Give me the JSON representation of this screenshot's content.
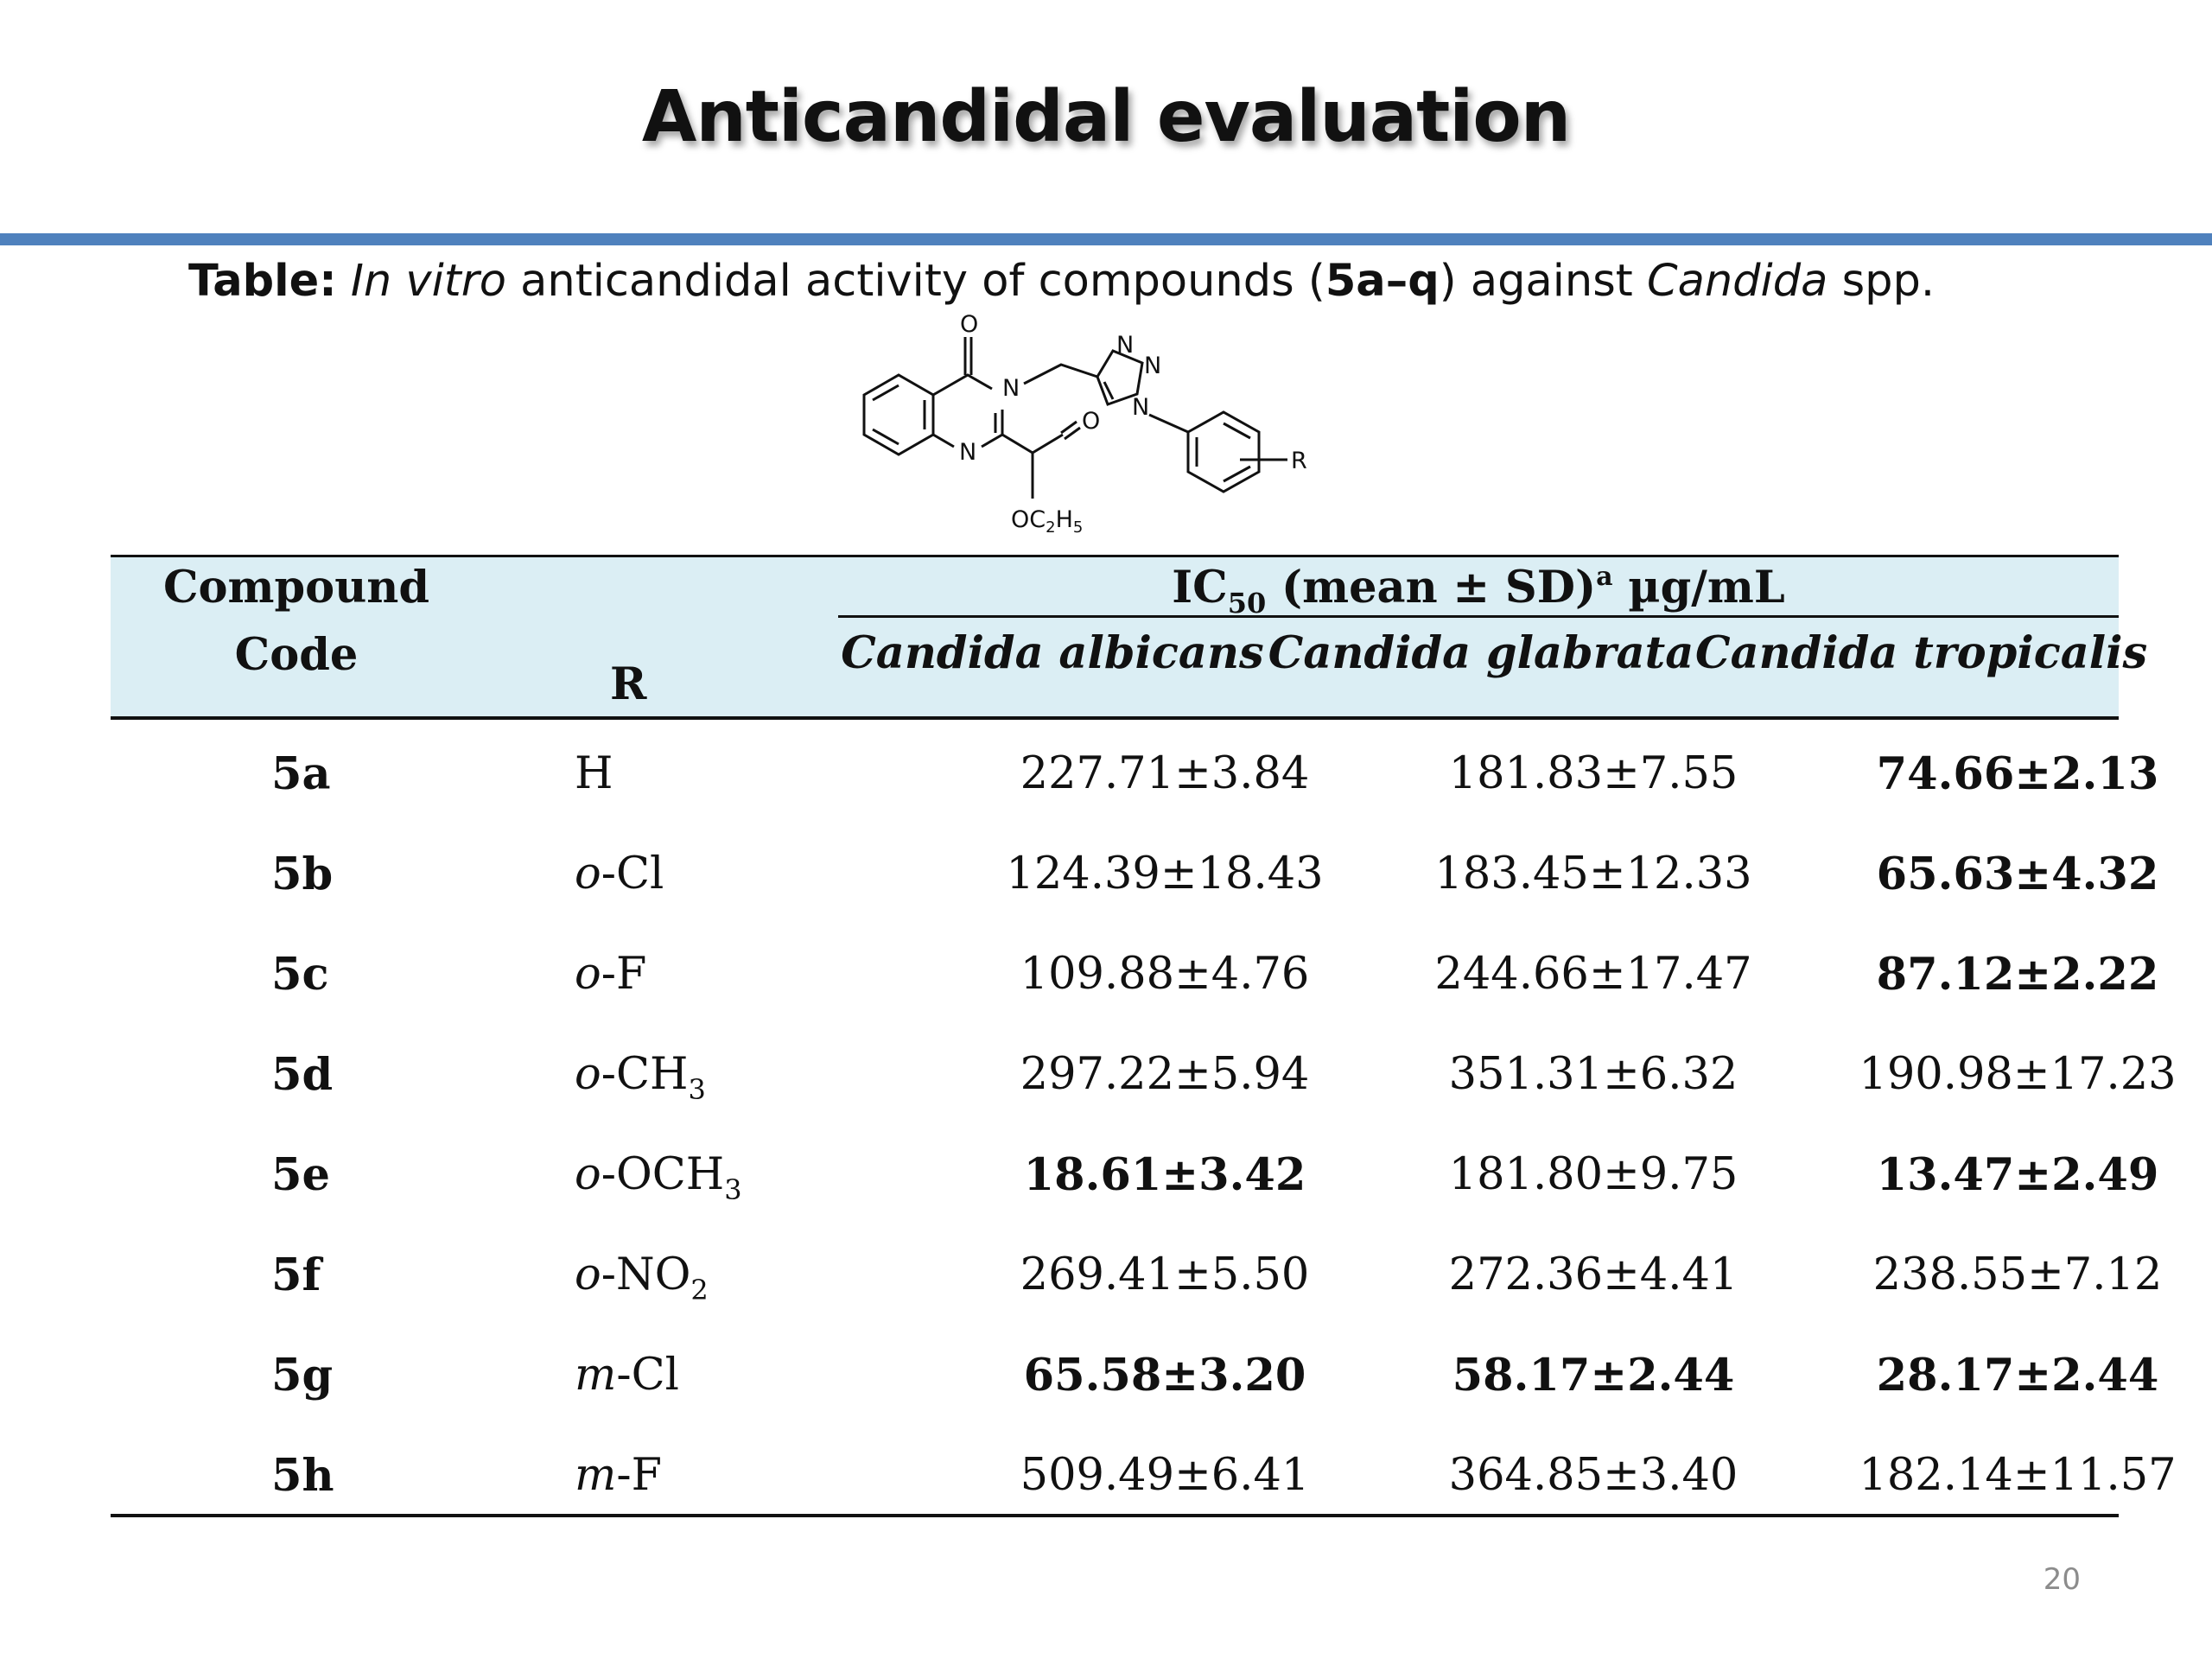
{
  "title": "Anticandidal evaluation",
  "caption": {
    "prefix_bold": "Table:",
    "in_vitro": "In vitro",
    "middle": "anticandidal activity of compounds (",
    "range_bold": "5a–q",
    "after": ") against",
    "genus": "Candida",
    "suffix": "spp."
  },
  "structure_labels": {
    "o1": "O",
    "n3": "N",
    "n1": "N",
    "tri_n1": "N",
    "tri_n2": "N",
    "tri_n3": "N",
    "ester_o": "O",
    "ester_oc": "OC",
    "ester_2": "2",
    "ester_h": "H",
    "ester_5": "5",
    "r": "R"
  },
  "table": {
    "header": {
      "compound": "Compound",
      "code": "Code",
      "r": "R",
      "ic50_prefix": "IC",
      "ic50_sub": "50",
      "ic50_mid": " (mean ± SD)",
      "ic50_sup": "a",
      "ic50_unit": " µg/mL",
      "col1": "Candida albicans",
      "col2": "Candida  glabrata",
      "col3": "Candida tropicalis"
    },
    "rows": [
      {
        "code": "5a",
        "r_prefix": "",
        "r_main": "H",
        "r_sub": "",
        "v1": "227.71±3.84",
        "v2": "181.83±7.55",
        "v3": "74.66±2.13",
        "b1": false,
        "b2": false,
        "b3": true
      },
      {
        "code": "5b",
        "r_prefix": "o",
        "r_main": "-Cl",
        "r_sub": "",
        "v1": "124.39±18.43",
        "v2": "183.45±12.33",
        "v3": "65.63±4.32",
        "b1": false,
        "b2": false,
        "b3": true
      },
      {
        "code": "5c",
        "r_prefix": "o",
        "r_main": "-F",
        "r_sub": "",
        "v1": "109.88±4.76",
        "v2": "244.66±17.47",
        "v3": "87.12±2.22",
        "b1": false,
        "b2": false,
        "b3": true
      },
      {
        "code": "5d",
        "r_prefix": "o",
        "r_main": "-CH",
        "r_sub": "3",
        "v1": "297.22±5.94",
        "v2": "351.31±6.32",
        "v3": "190.98±17.23",
        "b1": false,
        "b2": false,
        "b3": false
      },
      {
        "code": "5e",
        "r_prefix": "o",
        "r_main": "-OCH",
        "r_sub": "3",
        "v1": "18.61±3.42",
        "v2": "181.80±9.75",
        "v3": "13.47±2.49",
        "b1": true,
        "b2": false,
        "b3": true
      },
      {
        "code": "5f",
        "r_prefix": "o",
        "r_main": "-NO",
        "r_sub": "2",
        "v1": "269.41±5.50",
        "v2": "272.36±4.41",
        "v3": "238.55±7.12",
        "b1": false,
        "b2": false,
        "b3": false
      },
      {
        "code": "5g",
        "r_prefix": "m",
        "r_main": "-Cl",
        "r_sub": "",
        "v1": "65.58±3.20",
        "v2": "58.17±2.44",
        "v3": "28.17±2.44",
        "b1": true,
        "b2": true,
        "b3": true
      },
      {
        "code": "5h",
        "r_prefix": "m",
        "r_main": "-F",
        "r_sub": "",
        "v1": "509.49±6.41",
        "v2": "364.85±3.40",
        "v3": "182.14±11.57",
        "b1": false,
        "b2": false,
        "b3": false
      }
    ]
  },
  "page_number": "20"
}
